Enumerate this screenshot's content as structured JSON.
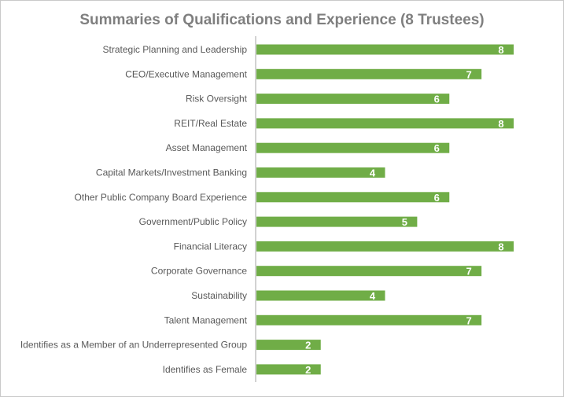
{
  "chart_data": {
    "type": "bar",
    "orientation": "horizontal",
    "title": "Summaries of Qualifications and Experience (8 Trustees)",
    "xlabel": "",
    "ylabel": "",
    "xlim": [
      0,
      8
    ],
    "grid": false,
    "bar_color": "#70ad47",
    "label_color": "#595959",
    "value_label_color": "#ffffff",
    "axis_color": "#a6a6a6",
    "categories": [
      "Strategic Planning and Leadership",
      "CEO/Executive Management",
      "Risk Oversight",
      "REIT/Real Estate",
      "Asset Management",
      "Capital Markets/Investment Banking",
      "Other Public Company Board Experience",
      "Government/Public Policy",
      "Financial Literacy",
      "Corporate Governance",
      "Sustainability",
      "Talent Management",
      "Identifies as a Member of an Underrepresented Group",
      "Identifies as Female"
    ],
    "values": [
      8,
      7,
      6,
      8,
      6,
      4,
      6,
      5,
      8,
      7,
      4,
      7,
      2,
      2
    ]
  }
}
